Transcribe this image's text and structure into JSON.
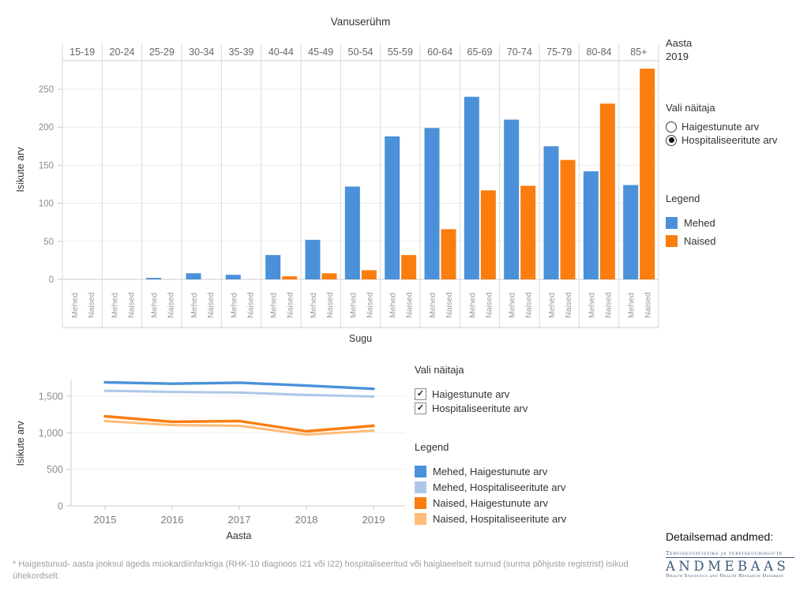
{
  "chart_data": [
    {
      "type": "bar",
      "title": "Vanuserühm",
      "xlabel": "Sugu",
      "ylabel": "Isikute arv",
      "categories": [
        "15-19",
        "20-24",
        "25-29",
        "30-34",
        "35-39",
        "40-44",
        "45-49",
        "50-54",
        "55-59",
        "60-64",
        "65-69",
        "70-74",
        "75-79",
        "80-84",
        "85+"
      ],
      "bar_tick_labels": [
        "Mehed",
        "Naised"
      ],
      "series": [
        {
          "name": "Mehed",
          "color": "#4A91D9",
          "values": [
            0,
            0,
            2,
            8,
            6,
            32,
            52,
            122,
            188,
            199,
            240,
            210,
            175,
            142,
            124
          ]
        },
        {
          "name": "Naised",
          "color": "#FB7D0E",
          "values": [
            0,
            0,
            0,
            0,
            0,
            4,
            8,
            12,
            32,
            66,
            117,
            123,
            157,
            231,
            277
          ]
        }
      ],
      "yticks": [
        0,
        50,
        100,
        150,
        200,
        250
      ],
      "ylim": [
        0,
        285
      ],
      "grid": true,
      "legend_position": "right"
    },
    {
      "type": "line",
      "xlabel": "Aasta",
      "ylabel": "Isikute arv",
      "x": [
        2015,
        2016,
        2017,
        2018,
        2019
      ],
      "series": [
        {
          "name": "Mehed, Haigestunute arv",
          "color": "#4A91D9",
          "values": [
            1690,
            1670,
            1685,
            1645,
            1600
          ]
        },
        {
          "name": "Mehed, Hospitaliseeritute arv",
          "color": "#AEC7E8",
          "values": [
            1575,
            1558,
            1550,
            1517,
            1495
          ]
        },
        {
          "name": "Naised, Haigestunute arv",
          "color": "#FB7D0E",
          "values": [
            1225,
            1150,
            1160,
            1020,
            1095
          ]
        },
        {
          "name": "Naised, Hospitaliseeritute arv",
          "color": "#FFBB78",
          "values": [
            1160,
            1105,
            1095,
            975,
            1030
          ]
        }
      ],
      "yticks": [
        "0",
        "500",
        "1,000",
        "1,500"
      ],
      "ytick_values": [
        0,
        500,
        1000,
        1500
      ],
      "ylim": [
        0,
        1750
      ],
      "grid": true,
      "legend_position": "right"
    }
  ],
  "top_panel": {
    "year_label": "Aasta",
    "year_value": "2019",
    "indicator_label": "Vali näitaja",
    "indicators": [
      {
        "label": "Haigestunute arv",
        "selected": false
      },
      {
        "label": "Hospitaliseeritute arv",
        "selected": true
      }
    ],
    "legend_label": "Legend",
    "legend": [
      {
        "label": "Mehed",
        "color": "#4A91D9"
      },
      {
        "label": "Naised",
        "color": "#FB7D0E"
      }
    ]
  },
  "bottom_panel": {
    "indicator_label": "Vali näitaja",
    "indicators": [
      {
        "label": "Haigestunute arv",
        "checked": true
      },
      {
        "label": "Hospitaliseeritute arv",
        "checked": true
      }
    ],
    "legend_label": "Legend",
    "legend": [
      {
        "label": "Mehed, Haigestunute arv",
        "color": "#4A91D9"
      },
      {
        "label": "Mehed, Hospitaliseeritute arv",
        "color": "#AEC7E8"
      },
      {
        "label": "Naised, Haigestunute arv",
        "color": "#FB7D0E"
      },
      {
        "label": "Naised, Hospitaliseeritute arv",
        "color": "#FFBB78"
      }
    ]
  },
  "footer": {
    "details_label": "Detailsemad andmed:",
    "logo": {
      "line1": "Tervisestatistika ja terviseuuringute",
      "wordmark": "ANDMEBAAS",
      "line3": "Health Statistics and Health Research Database"
    },
    "footnote": "* Haigestunud- aasta jooksul ägeda müokardiinfarktiga (RHK-10 diagnoos I21 või I22) hospitaliseeritud või haiglaeelselt surnud (surma põhjuste registrist) isikud ühekordselt."
  }
}
